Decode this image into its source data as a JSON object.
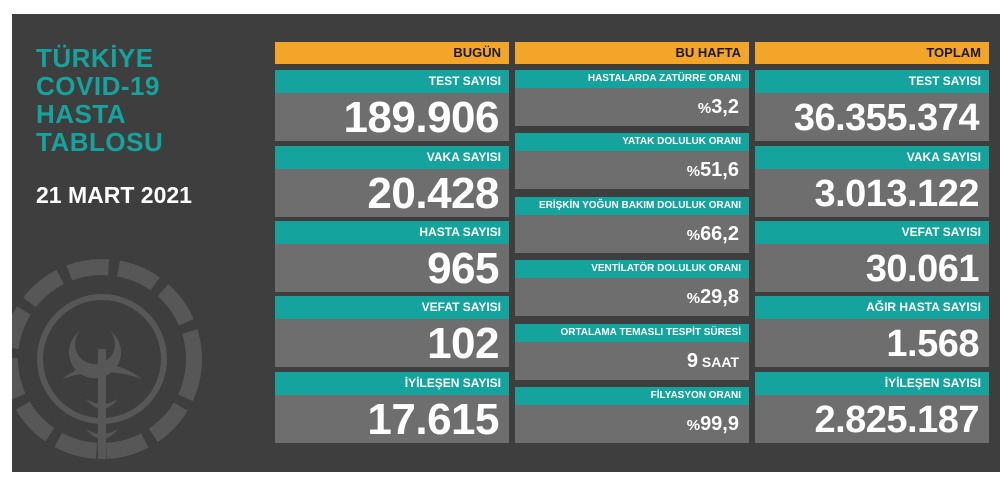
{
  "panel": {
    "title_lines": [
      "TÜRKİYE",
      "COVID-19",
      "HASTA",
      "TABLOSU"
    ],
    "date": "21 MART 2021",
    "colors": {
      "background": "#3e3e3e",
      "teal": "#15a39d",
      "orange": "#f3a529",
      "value_box": "#6e6e6e"
    }
  },
  "today": {
    "header": "BUGÜN",
    "items": [
      {
        "label": "TEST SAYISI",
        "value": "189.906"
      },
      {
        "label": "VAKA SAYISI",
        "value": "20.428"
      },
      {
        "label": "HASTA SAYISI",
        "value": "965"
      },
      {
        "label": "VEFAT SAYISI",
        "value": "102"
      },
      {
        "label": "İYİLEŞEN SAYISI",
        "value": "17.615"
      }
    ]
  },
  "week": {
    "header": "BU HAFTA",
    "items": [
      {
        "label": "HASTALARDA ZATÜRRE ORANI",
        "prefix": "%",
        "value": "3,2",
        "suffix": ""
      },
      {
        "label": "YATAK DOLULUK ORANI",
        "prefix": "%",
        "value": "51,6",
        "suffix": ""
      },
      {
        "label": "ERİŞKİN YOĞUN BAKIM DOLULUK ORANI",
        "prefix": "%",
        "value": "66,2",
        "suffix": ""
      },
      {
        "label": "VENTİLATÖR DOLULUK ORANI",
        "prefix": "%",
        "value": "29,8",
        "suffix": ""
      },
      {
        "label": "ORTALAMA TEMASLI TESPİT SÜRESİ",
        "prefix": "",
        "value": "9",
        "suffix": " SAAT"
      },
      {
        "label": "FİLYASYON ORANI",
        "prefix": "%",
        "value": "99,9",
        "suffix": ""
      }
    ]
  },
  "total": {
    "header": "TOPLAM",
    "items": [
      {
        "label": "TEST SAYISI",
        "value": "36.355.374"
      },
      {
        "label": "VAKA SAYISI",
        "value": "3.013.122"
      },
      {
        "label": "VEFAT SAYISI",
        "value": "30.061"
      },
      {
        "label": "AĞIR HASTA SAYISI",
        "value": "1.568"
      },
      {
        "label": "İYİLEŞEN SAYISI",
        "value": "2.825.187"
      }
    ]
  }
}
